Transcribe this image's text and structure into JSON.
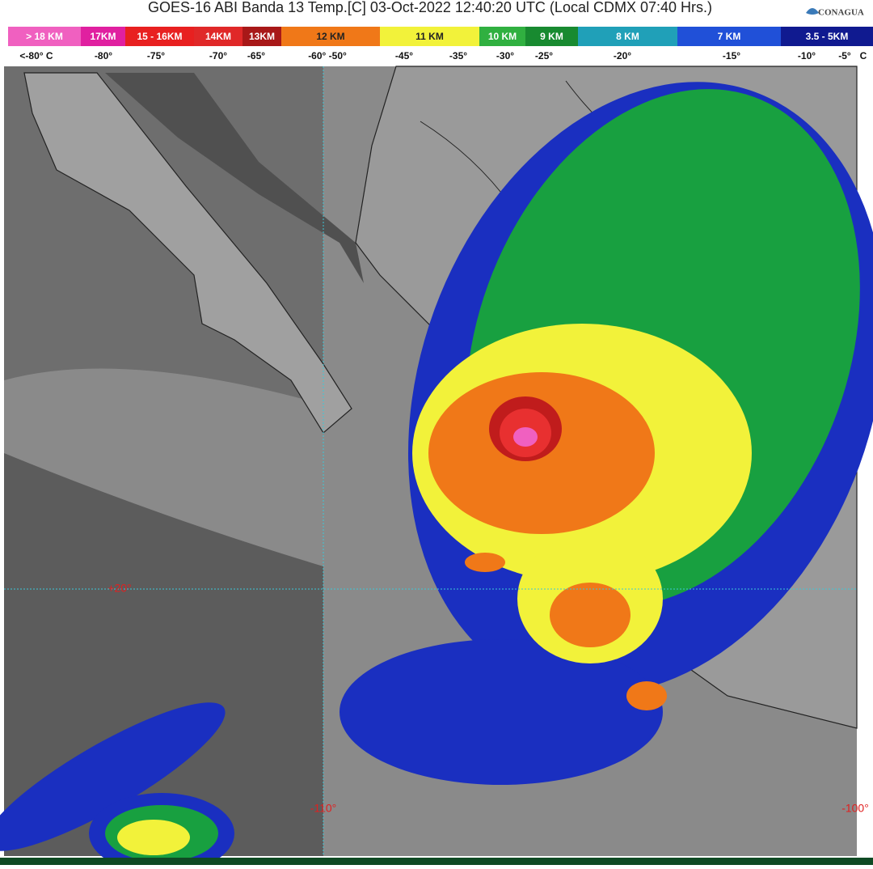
{
  "header": {
    "title": "GOES-16 ABI Banda 13 Temp.[C] 03-Oct-2022 12:40:20 UTC (Local CDMX  07:40 Hrs.)",
    "logo": "CONAGUA"
  },
  "legend": {
    "bands": [
      "> 18 KM",
      "17KM",
      "15 - 16KM",
      "14KM",
      "13KM",
      "12 KM",
      "11 KM",
      "10 KM",
      "9 KM",
      "8 KM",
      "7 KM",
      "3.5 - 5KM"
    ],
    "temperatures": [
      "<-80° C",
      "-80°",
      "-75°",
      "-70°",
      "-65°",
      "-60°  -50°",
      "-45°",
      "-35°",
      "-30°",
      "-25°",
      "-20°",
      "-15°",
      "-10°",
      "-5°",
      "C"
    ]
  },
  "map": {
    "labels": [
      "+20°",
      "-110°",
      "-100°"
    ]
  }
}
